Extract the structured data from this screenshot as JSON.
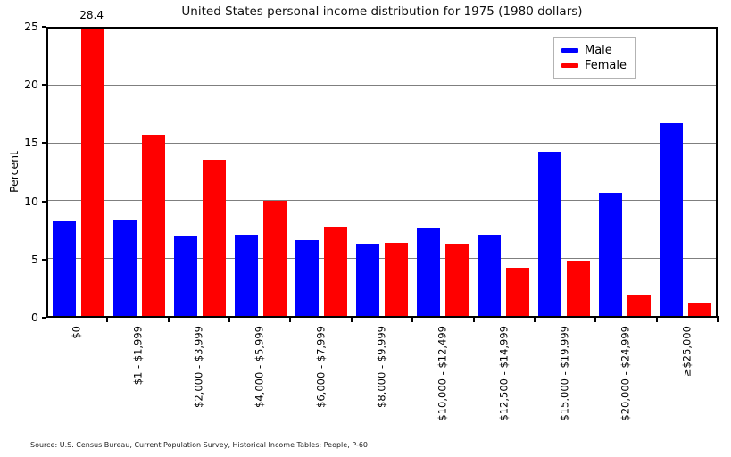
{
  "chart_data": {
    "type": "bar",
    "title": "United States personal income distribution for 1975 (1980 dollars)",
    "xlabel": "",
    "ylabel": "Percent",
    "ylim": [
      0,
      25
    ],
    "yticks": [
      0,
      5,
      10,
      15,
      20,
      25
    ],
    "grid": true,
    "legend_position": "upper right",
    "categories": [
      "$0",
      "$1 - $1,999",
      "$2,000 - $3,999",
      "$4,000 - $5,999",
      "$6,000 - $7,999",
      "$8,000 - $9,999",
      "$10,000 - $12,499",
      "$12,500 - $14,999",
      "$15,000 - $19,999",
      "$20,000 - $24,999",
      "≥$25,000"
    ],
    "series": [
      {
        "name": "Male",
        "color": "#0000ff",
        "values": [
          8.2,
          8.4,
          7.0,
          7.1,
          6.6,
          6.3,
          7.7,
          7.1,
          14.3,
          10.7,
          16.8
        ]
      },
      {
        "name": "Female",
        "color": "#ff0000",
        "values": [
          28.4,
          15.8,
          13.6,
          10.0,
          7.8,
          6.4,
          6.3,
          4.2,
          4.8,
          1.9,
          1.1
        ]
      }
    ],
    "annotations": [
      {
        "text": "28.4",
        "series": "Female",
        "category": "$0",
        "note": "bar clipped at top of axis (25)"
      }
    ]
  },
  "source_note": "Source: U.S. Census Bureau, Current Population Survey, Historical Income Tables: People, P-60"
}
